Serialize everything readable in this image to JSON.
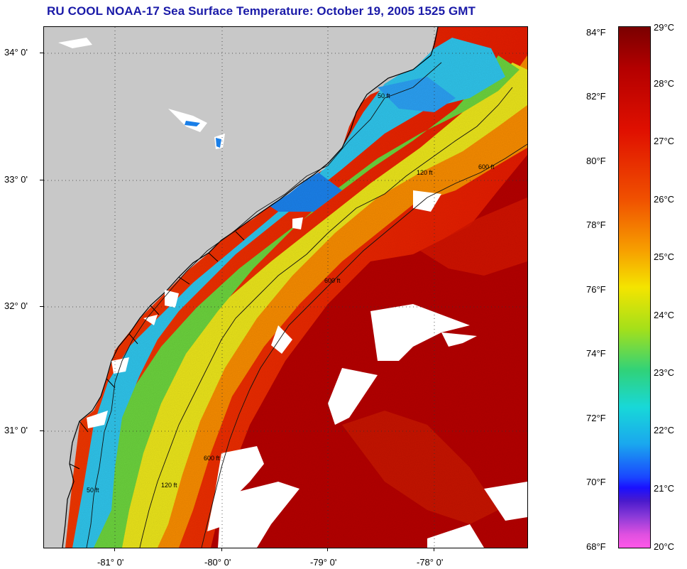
{
  "title": "RU COOL  NOAA-17  Sea Surface Temperature:  October 19, 2005 1525 GMT",
  "map": {
    "lat_labels": [
      "34° 0'",
      "33° 0'",
      "32° 0'",
      "31° 0'"
    ],
    "lon_labels": [
      "-81° 0'",
      "-80° 0'",
      "-79° 0'",
      "-78° 0'"
    ],
    "contour_labels": [
      "50 ft",
      "120 ft",
      "600 ft"
    ]
  },
  "colorbar": {
    "fahrenheit": [
      "84°F",
      "82°F",
      "80°F",
      "78°F",
      "76°F",
      "74°F",
      "72°F",
      "70°F",
      "68°F"
    ],
    "celsius": [
      "29°C",
      "28°C",
      "27°C",
      "26°C",
      "25°C",
      "24°C",
      "23°C",
      "22°C",
      "21°C",
      "20°C"
    ]
  },
  "colors": {
    "title": "#1a1aa8",
    "land": "#c8c8c8",
    "cloud": "#ffffff",
    "gulf_stream": "#b00000",
    "shelf_warm": "#ef2a00",
    "mid_shelf": "#f7a000",
    "inner_shelf": "#dcea18",
    "nearshore": "#3ab8ee",
    "coast_cold": "#1a8fe8"
  }
}
